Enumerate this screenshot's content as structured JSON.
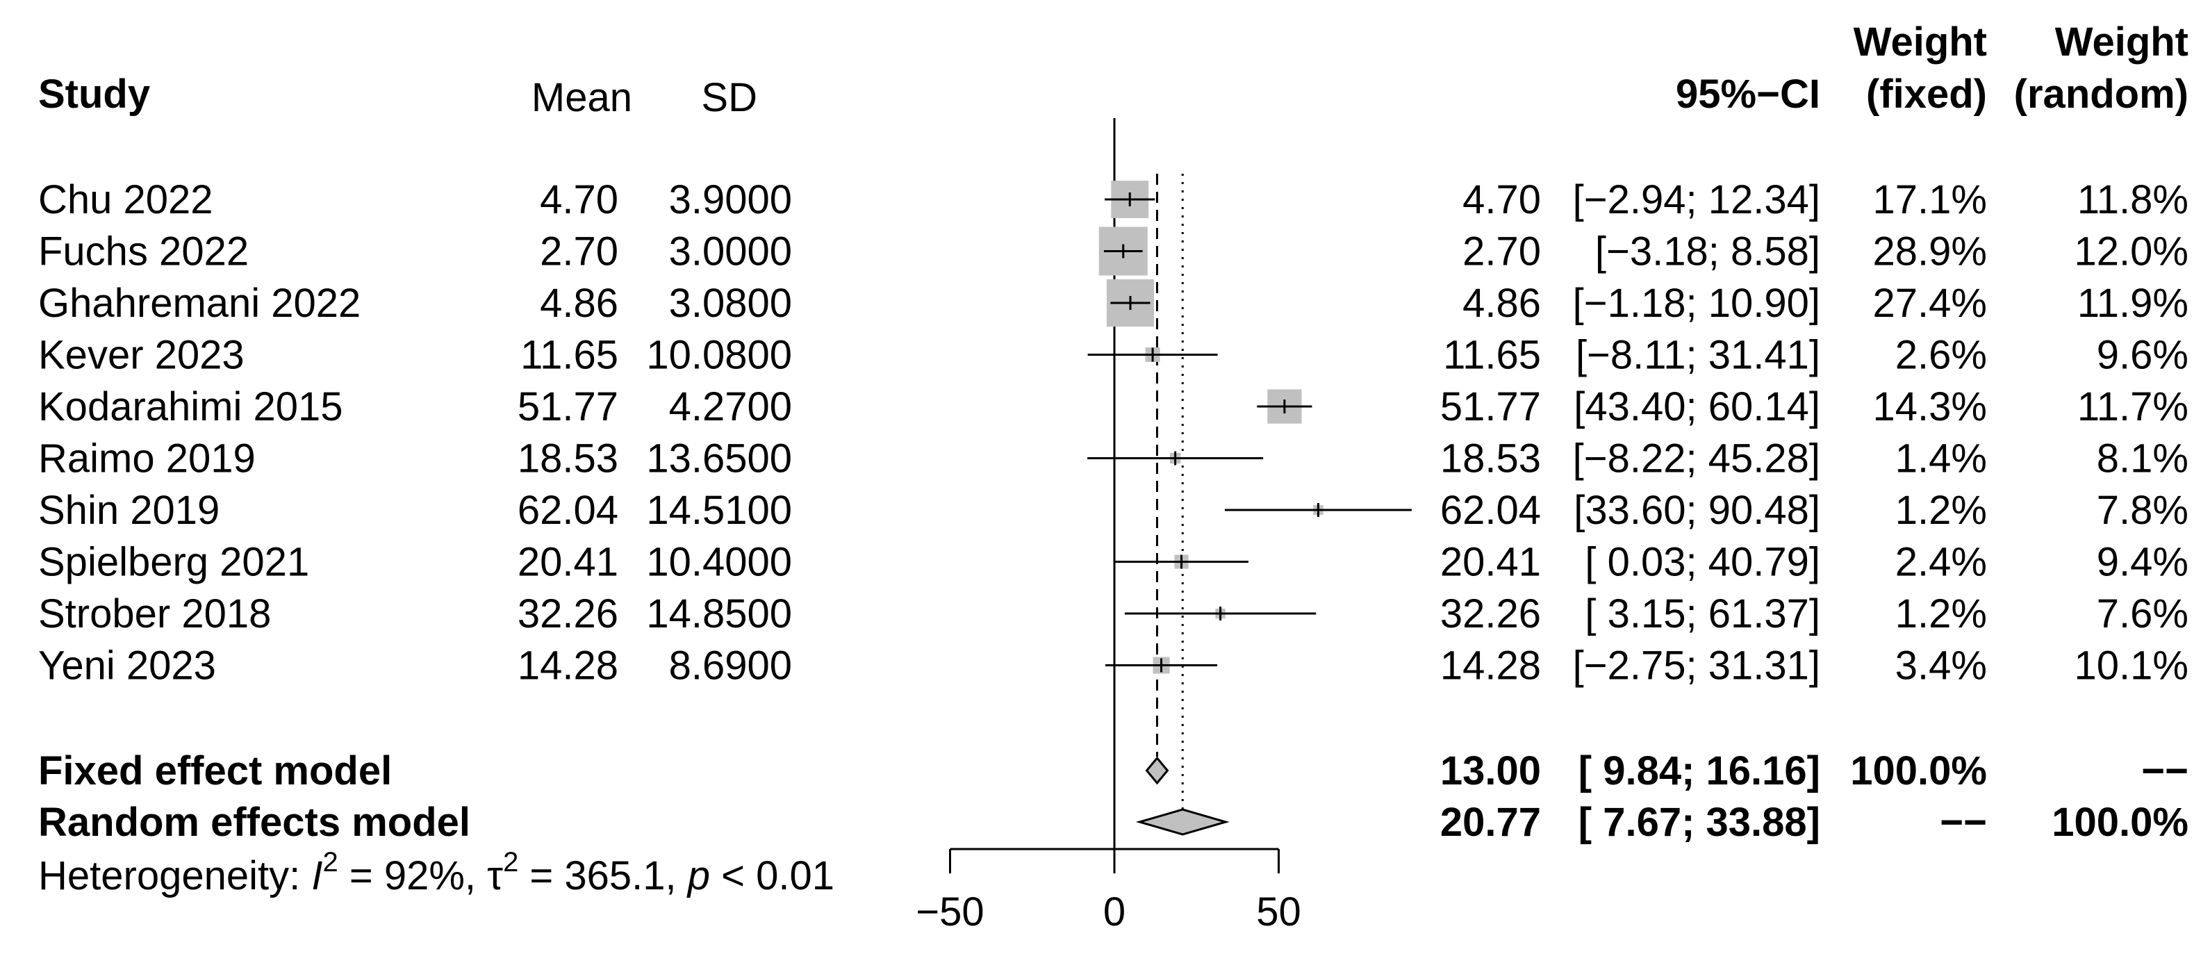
{
  "chart_data": {
    "type": "forest",
    "columns": {
      "study": "Study",
      "mean": "Mean",
      "sd": "SD",
      "ci": "95%−CI",
      "weight_fixed": [
        "Weight",
        "(fixed)"
      ],
      "weight_random": [
        "Weight",
        "(random)"
      ]
    },
    "studies": [
      {
        "label": "Chu 2022",
        "mean": "4.70",
        "sd": "3.9000",
        "est": 4.7,
        "lower": -2.94,
        "upper": 12.34,
        "ci_text": "[−2.94; 12.34]",
        "weight_fixed": "17.1%",
        "weight_random": "11.8%",
        "w": 17.1
      },
      {
        "label": "Fuchs 2022",
        "mean": "2.70",
        "sd": "3.0000",
        "est": 2.7,
        "lower": -3.18,
        "upper": 8.58,
        "ci_text": "[−3.18;  8.58]",
        "weight_fixed": "28.9%",
        "weight_random": "12.0%",
        "w": 28.9
      },
      {
        "label": "Ghahremani 2022",
        "mean": "4.86",
        "sd": "3.0800",
        "est": 4.86,
        "lower": -1.18,
        "upper": 10.9,
        "ci_text": "[−1.18; 10.90]",
        "weight_fixed": "27.4%",
        "weight_random": "11.9%",
        "w": 27.4
      },
      {
        "label": "Kever 2023",
        "mean": "11.65",
        "sd": "10.0800",
        "est": 11.65,
        "lower": -8.11,
        "upper": 31.41,
        "ci_text": "[−8.11; 31.41]",
        "weight_fixed": "2.6%",
        "weight_random": "9.6%",
        "w": 2.6
      },
      {
        "label": "Kodarahimi 2015",
        "mean": "51.77",
        "sd": "4.2700",
        "est": 51.77,
        "lower": 43.4,
        "upper": 60.14,
        "ci_text": "[43.40; 60.14]",
        "weight_fixed": "14.3%",
        "weight_random": "11.7%",
        "w": 14.3
      },
      {
        "label": "Raimo 2019",
        "mean": "18.53",
        "sd": "13.6500",
        "est": 18.53,
        "lower": -8.22,
        "upper": 45.28,
        "ci_text": "[−8.22; 45.28]",
        "weight_fixed": "1.4%",
        "weight_random": "8.1%",
        "w": 1.4
      },
      {
        "label": "Shin 2019",
        "mean": "62.04",
        "sd": "14.5100",
        "est": 62.04,
        "lower": 33.6,
        "upper": 90.48,
        "ci_text": "[33.60; 90.48]",
        "weight_fixed": "1.2%",
        "weight_random": "7.8%",
        "w": 1.2
      },
      {
        "label": "Spielberg 2021",
        "mean": "20.41",
        "sd": "10.4000",
        "est": 20.41,
        "lower": 0.03,
        "upper": 40.79,
        "ci_text": "[ 0.03; 40.79]",
        "weight_fixed": "2.4%",
        "weight_random": "9.4%",
        "w": 2.4
      },
      {
        "label": "Strober 2018",
        "mean": "32.26",
        "sd": "14.8500",
        "est": 32.26,
        "lower": 3.15,
        "upper": 61.37,
        "ci_text": "[ 3.15; 61.37]",
        "weight_fixed": "1.2%",
        "weight_random": "7.6%",
        "w": 1.2
      },
      {
        "label": "Yeni 2023",
        "mean": "14.28",
        "sd": "8.6900",
        "est": 14.28,
        "lower": -2.75,
        "upper": 31.31,
        "ci_text": "[−2.75; 31.31]",
        "weight_fixed": "3.4%",
        "weight_random": "10.1%",
        "w": 3.4
      }
    ],
    "models": [
      {
        "label": "Fixed effect model",
        "est": 13.0,
        "lower": 9.84,
        "upper": 16.16,
        "est_text": "13.00",
        "ci_text": "[ 9.84; 16.16]",
        "weight_fixed": "100.0%",
        "weight_random": "−−"
      },
      {
        "label": "Random effects model",
        "est": 20.77,
        "lower": 7.67,
        "upper": 33.88,
        "est_text": "20.77",
        "ci_text": "[ 7.67; 33.88]",
        "weight_fixed": "−−",
        "weight_random": "100.0%"
      }
    ],
    "heterogeneity": {
      "prefix": "Heterogeneity: ",
      "i2_symbol": "I",
      "i2_value": " = 92%, ",
      "tau_symbol": "τ",
      "tau_value": " = 365.1, ",
      "p_symbol": "p",
      "p_value": " < 0.01"
    },
    "x_axis": {
      "ticks": [
        -50,
        0,
        50
      ],
      "tick_labels": [
        "−50",
        "0",
        "50"
      ],
      "range": [
        -50,
        50
      ]
    },
    "reference_line": 0,
    "colors": {
      "square": "#c0c0c0",
      "diamond": "#c0c0c0",
      "line": "#000000"
    }
  }
}
